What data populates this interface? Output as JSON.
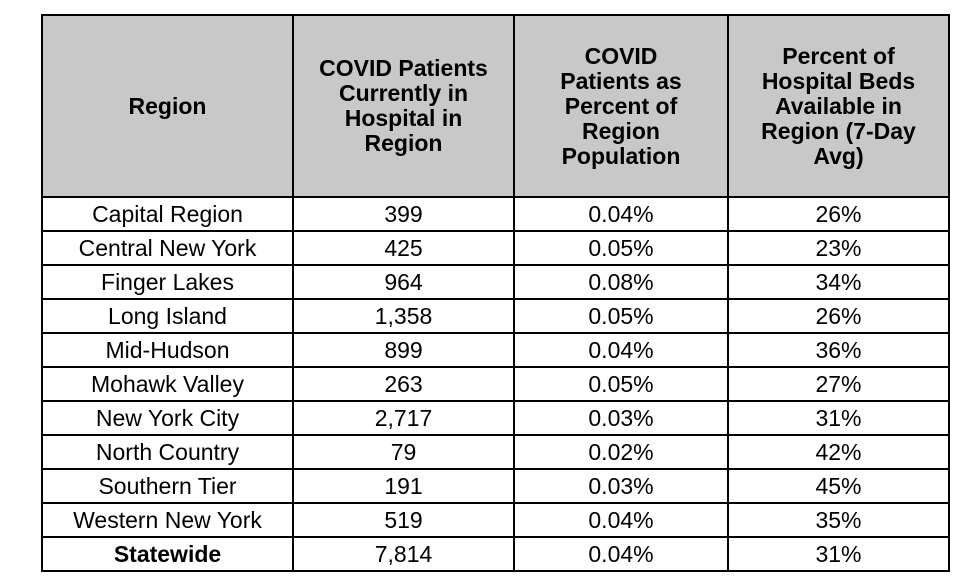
{
  "chart_data": {
    "type": "table",
    "columns": [
      "Region",
      "COVID Patients Currently in Hospital in Region",
      "COVID Patients as Percent of Region Population",
      "Percent of Hospital Beds Available in Region (7-Day Avg)"
    ],
    "header_lines": [
      [
        "Region"
      ],
      [
        "COVID Patients",
        "Currently in",
        "Hospital in",
        "Region"
      ],
      [
        "COVID",
        "Patients as",
        "Percent of",
        "Region",
        "Population"
      ],
      [
        "Percent of",
        "Hospital Beds",
        "Available in",
        "Region (7-Day",
        "Avg)"
      ]
    ],
    "rows": [
      {
        "region": "Capital Region",
        "patients": "399",
        "pct_population": "0.04%",
        "pct_beds": "26%"
      },
      {
        "region": "Central New York",
        "patients": "425",
        "pct_population": "0.05%",
        "pct_beds": "23%"
      },
      {
        "region": "Finger Lakes",
        "patients": "964",
        "pct_population": "0.08%",
        "pct_beds": "34%"
      },
      {
        "region": "Long Island",
        "patients": "1,358",
        "pct_population": "0.05%",
        "pct_beds": "26%"
      },
      {
        "region": "Mid-Hudson",
        "patients": "899",
        "pct_population": "0.04%",
        "pct_beds": "36%"
      },
      {
        "region": "Mohawk Valley",
        "patients": "263",
        "pct_population": "0.05%",
        "pct_beds": "27%"
      },
      {
        "region": "New York City",
        "patients": "2,717",
        "pct_population": "0.03%",
        "pct_beds": "31%"
      },
      {
        "region": "North Country",
        "patients": "79",
        "pct_population": "0.02%",
        "pct_beds": "42%"
      },
      {
        "region": "Southern Tier",
        "patients": "191",
        "pct_population": "0.03%",
        "pct_beds": "45%"
      },
      {
        "region": "Western New York",
        "patients": "519",
        "pct_population": "0.04%",
        "pct_beds": "35%"
      }
    ],
    "total": {
      "region": "Statewide",
      "patients": "7,814",
      "pct_population": "0.04%",
      "pct_beds": "31%"
    },
    "colors": {
      "header_background": "#c8c8c8",
      "border": "#000000",
      "text": "#000000"
    }
  }
}
